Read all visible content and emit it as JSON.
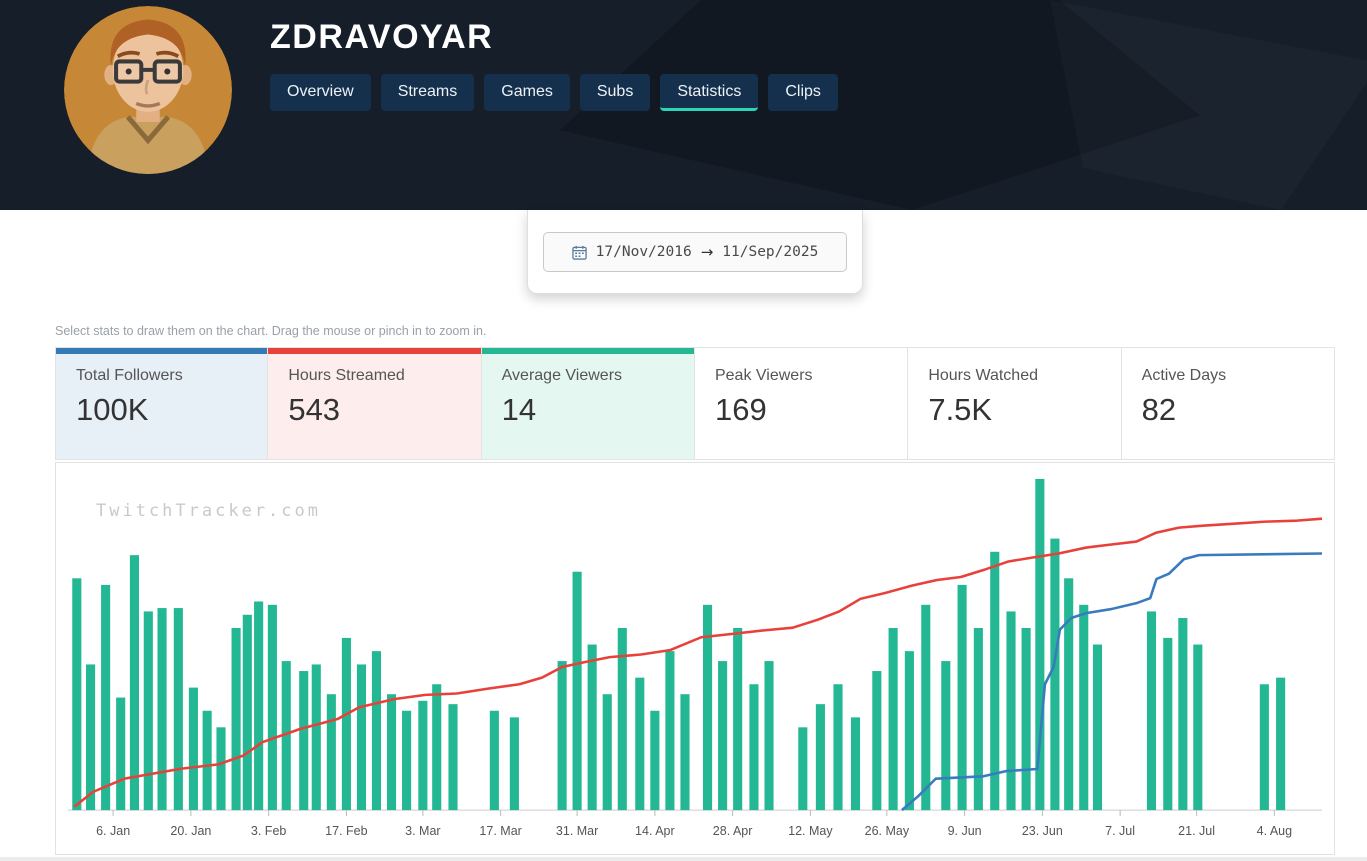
{
  "header": {
    "title": "ZDRAVOYAR",
    "nav": [
      {
        "label": "Overview",
        "active": false
      },
      {
        "label": "Streams",
        "active": false
      },
      {
        "label": "Games",
        "active": false
      },
      {
        "label": "Subs",
        "active": false
      },
      {
        "label": "Statistics",
        "active": true
      },
      {
        "label": "Clips",
        "active": false
      }
    ],
    "active_tab_underline_color": "#2fd3b5"
  },
  "date_range": {
    "start": "17/Nov/2016",
    "end": "11/Sep/2025",
    "arrow": "→"
  },
  "hint": "Select stats to draw them on the chart. Drag the mouse or pinch in to zoom in.",
  "stats_cards": [
    {
      "label": "Total Followers",
      "value": "100K",
      "accent": "#337ab7",
      "bg": "#e7eff7",
      "selected": true
    },
    {
      "label": "Hours Streamed",
      "value": "543",
      "accent": "#e8413c",
      "bg": "#fdeded",
      "selected": true
    },
    {
      "label": "Average Viewers",
      "value": "14",
      "accent": "#23b893",
      "bg": "#e5f7f1",
      "selected": true
    },
    {
      "label": "Peak Viewers",
      "value": "169",
      "accent": null,
      "bg": "#ffffff",
      "selected": false
    },
    {
      "label": "Hours Watched",
      "value": "7.5K",
      "accent": null,
      "bg": "#ffffff",
      "selected": false
    },
    {
      "label": "Active Days",
      "value": "82",
      "accent": null,
      "bg": "#ffffff",
      "selected": false
    }
  ],
  "watermark": "TwitchTracker.com",
  "chart_data": {
    "type": "bar+line",
    "title": "Channel statistics 17/Nov/2016 - 11/Sep/2025 (visible window Jan-Aug)",
    "coords": "normalized 0-1; x left to right; y: 1 = baseline, 0 = top of plot; bar values are h (height fraction)",
    "x_axis": [
      {
        "label": "6. Jan",
        "x": 0.036
      },
      {
        "label": "20. Jan",
        "x": 0.098
      },
      {
        "label": "3. Feb",
        "x": 0.16
      },
      {
        "label": "17. Feb",
        "x": 0.222
      },
      {
        "label": "3. Mar",
        "x": 0.283
      },
      {
        "label": "17. Mar",
        "x": 0.345
      },
      {
        "label": "31. Mar",
        "x": 0.406
      },
      {
        "label": "14. Apr",
        "x": 0.468
      },
      {
        "label": "28. Apr",
        "x": 0.53
      },
      {
        "label": "12. May",
        "x": 0.592
      },
      {
        "label": "26. May",
        "x": 0.653
      },
      {
        "label": "9. Jun",
        "x": 0.715
      },
      {
        "label": "23. Jun",
        "x": 0.777
      },
      {
        "label": "7. Jul",
        "x": 0.839
      },
      {
        "label": "21. Jul",
        "x": 0.9
      },
      {
        "label": "4. Aug",
        "x": 0.962
      }
    ],
    "series": [
      {
        "name": "Average Viewers",
        "type": "bar",
        "color": "#23b893",
        "points": [
          [
            0.007,
            0.7
          ],
          [
            0.018,
            0.44
          ],
          [
            0.03,
            0.68
          ],
          [
            0.042,
            0.34
          ],
          [
            0.053,
            0.77
          ],
          [
            0.064,
            0.6
          ],
          [
            0.075,
            0.61
          ],
          [
            0.088,
            0.61
          ],
          [
            0.1,
            0.37
          ],
          [
            0.111,
            0.3
          ],
          [
            0.122,
            0.25
          ],
          [
            0.134,
            0.55
          ],
          [
            0.143,
            0.59
          ],
          [
            0.152,
            0.63
          ],
          [
            0.163,
            0.62
          ],
          [
            0.174,
            0.45
          ],
          [
            0.188,
            0.42
          ],
          [
            0.198,
            0.44
          ],
          [
            0.21,
            0.35
          ],
          [
            0.222,
            0.52
          ],
          [
            0.234,
            0.44
          ],
          [
            0.246,
            0.48
          ],
          [
            0.258,
            0.35
          ],
          [
            0.27,
            0.3
          ],
          [
            0.283,
            0.33
          ],
          [
            0.294,
            0.38
          ],
          [
            0.307,
            0.32
          ],
          [
            0.34,
            0.3
          ],
          [
            0.356,
            0.28
          ],
          [
            0.394,
            0.45
          ],
          [
            0.406,
            0.72
          ],
          [
            0.418,
            0.5
          ],
          [
            0.43,
            0.35
          ],
          [
            0.442,
            0.55
          ],
          [
            0.456,
            0.4
          ],
          [
            0.468,
            0.3
          ],
          [
            0.48,
            0.48
          ],
          [
            0.492,
            0.35
          ],
          [
            0.51,
            0.62
          ],
          [
            0.522,
            0.45
          ],
          [
            0.534,
            0.55
          ],
          [
            0.547,
            0.38
          ],
          [
            0.559,
            0.45
          ],
          [
            0.586,
            0.25
          ],
          [
            0.6,
            0.32
          ],
          [
            0.614,
            0.38
          ],
          [
            0.628,
            0.28
          ],
          [
            0.645,
            0.42
          ],
          [
            0.658,
            0.55
          ],
          [
            0.671,
            0.48
          ],
          [
            0.684,
            0.62
          ],
          [
            0.7,
            0.45
          ],
          [
            0.713,
            0.68
          ],
          [
            0.726,
            0.55
          ],
          [
            0.739,
            0.78
          ],
          [
            0.752,
            0.6
          ],
          [
            0.764,
            0.55
          ],
          [
            0.775,
            1.0
          ],
          [
            0.787,
            0.82
          ],
          [
            0.798,
            0.7
          ],
          [
            0.81,
            0.62
          ],
          [
            0.821,
            0.5
          ],
          [
            0.864,
            0.6
          ],
          [
            0.877,
            0.52
          ],
          [
            0.889,
            0.58
          ],
          [
            0.901,
            0.5
          ],
          [
            0.954,
            0.38
          ],
          [
            0.967,
            0.4
          ]
        ]
      },
      {
        "name": "Hours Streamed",
        "type": "line",
        "color": "#e8413c",
        "points": [
          [
            0.005,
            0.99
          ],
          [
            0.02,
            0.945
          ],
          [
            0.045,
            0.905
          ],
          [
            0.09,
            0.875
          ],
          [
            0.12,
            0.862
          ],
          [
            0.14,
            0.835
          ],
          [
            0.155,
            0.795
          ],
          [
            0.185,
            0.755
          ],
          [
            0.215,
            0.725
          ],
          [
            0.232,
            0.69
          ],
          [
            0.26,
            0.665
          ],
          [
            0.285,
            0.652
          ],
          [
            0.31,
            0.648
          ],
          [
            0.335,
            0.633
          ],
          [
            0.36,
            0.62
          ],
          [
            0.378,
            0.6
          ],
          [
            0.394,
            0.568
          ],
          [
            0.412,
            0.553
          ],
          [
            0.432,
            0.538
          ],
          [
            0.457,
            0.53
          ],
          [
            0.48,
            0.517
          ],
          [
            0.505,
            0.478
          ],
          [
            0.53,
            0.468
          ],
          [
            0.555,
            0.457
          ],
          [
            0.578,
            0.449
          ],
          [
            0.598,
            0.425
          ],
          [
            0.615,
            0.4
          ],
          [
            0.632,
            0.362
          ],
          [
            0.652,
            0.344
          ],
          [
            0.673,
            0.322
          ],
          [
            0.693,
            0.305
          ],
          [
            0.712,
            0.296
          ],
          [
            0.73,
            0.275
          ],
          [
            0.75,
            0.249
          ],
          [
            0.77,
            0.237
          ],
          [
            0.79,
            0.225
          ],
          [
            0.812,
            0.207
          ],
          [
            0.832,
            0.198
          ],
          [
            0.852,
            0.189
          ],
          [
            0.868,
            0.162
          ],
          [
            0.886,
            0.147
          ],
          [
            0.905,
            0.141
          ],
          [
            0.93,
            0.135
          ],
          [
            0.955,
            0.129
          ],
          [
            0.98,
            0.126
          ],
          [
            1.0,
            0.12
          ]
        ]
      },
      {
        "name": "Total Followers",
        "type": "line",
        "color": "#3a7abf",
        "points": [
          [
            0.665,
            1.0
          ],
          [
            0.678,
            0.958
          ],
          [
            0.692,
            0.905
          ],
          [
            0.73,
            0.898
          ],
          [
            0.748,
            0.882
          ],
          [
            0.773,
            0.876
          ],
          [
            0.779,
            0.62
          ],
          [
            0.786,
            0.568
          ],
          [
            0.791,
            0.455
          ],
          [
            0.8,
            0.42
          ],
          [
            0.812,
            0.405
          ],
          [
            0.832,
            0.393
          ],
          [
            0.852,
            0.375
          ],
          [
            0.863,
            0.36
          ],
          [
            0.868,
            0.302
          ],
          [
            0.878,
            0.286
          ],
          [
            0.89,
            0.242
          ],
          [
            0.902,
            0.23
          ],
          [
            1.0,
            0.225
          ]
        ]
      }
    ],
    "legend": "none visible; colors match the three selected stat cards"
  }
}
